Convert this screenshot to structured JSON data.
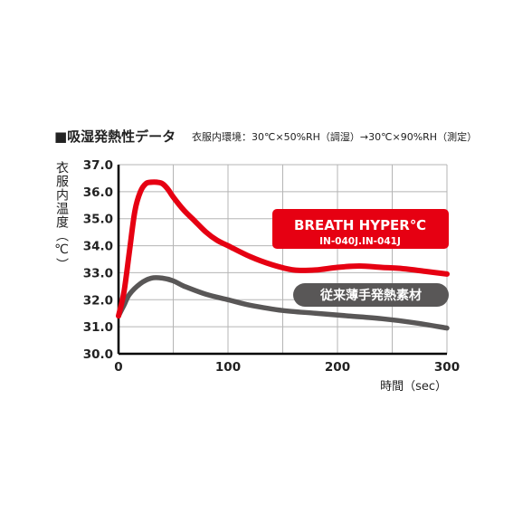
{
  "chart_data": {
    "type": "line",
    "title": "■吸湿発熱性データ",
    "subtitle": "衣服内環境：30℃×50%RH（調湿）→30℃×90%RH（測定）",
    "ylabel": "衣服内温度（℃）",
    "xlabel": "時間（sec）",
    "xlim": [
      0,
      300
    ],
    "ylim": [
      30.0,
      37.0
    ],
    "xticks": [
      0,
      100,
      200,
      300
    ],
    "xtick_labels": [
      "0",
      "100",
      "200",
      "300"
    ],
    "yticks": [
      30,
      31,
      32,
      33,
      34,
      35,
      36,
      37
    ],
    "ytick_labels": [
      "30.0",
      "31.0",
      "32.0",
      "33.0",
      "34.0",
      "35.0",
      "36.0",
      "37.0"
    ],
    "xgrid_step": 50,
    "grid": true,
    "series": [
      {
        "name": "BREATH HYPER℃",
        "sub_label": "IN-040J.IN-041J",
        "color": "#e60012",
        "x": [
          0,
          5,
          10,
          15,
          20,
          25,
          30,
          35,
          40,
          45,
          50,
          60,
          70,
          80,
          90,
          100,
          120,
          140,
          160,
          180,
          200,
          220,
          240,
          260,
          280,
          300
        ],
        "y": [
          31.4,
          32.3,
          33.8,
          35.3,
          36.0,
          36.3,
          36.35,
          36.35,
          36.3,
          36.1,
          35.8,
          35.3,
          34.9,
          34.5,
          34.2,
          34.0,
          33.6,
          33.3,
          33.1,
          33.1,
          33.2,
          33.25,
          33.2,
          33.15,
          33.05,
          32.95
        ]
      },
      {
        "name": "従来薄手発熱素材",
        "color": "#595757",
        "x": [
          0,
          5,
          10,
          20,
          30,
          40,
          50,
          60,
          80,
          100,
          120,
          150,
          180,
          210,
          240,
          270,
          300
        ],
        "y": [
          31.4,
          31.8,
          32.2,
          32.6,
          32.8,
          32.8,
          32.7,
          32.5,
          32.2,
          32.0,
          31.8,
          31.6,
          31.5,
          31.4,
          31.3,
          31.15,
          30.95
        ]
      }
    ]
  },
  "colors": {
    "accent": "#e60012",
    "grey": "#595757",
    "grid": "#b5b5b5",
    "axis": "#000000"
  }
}
